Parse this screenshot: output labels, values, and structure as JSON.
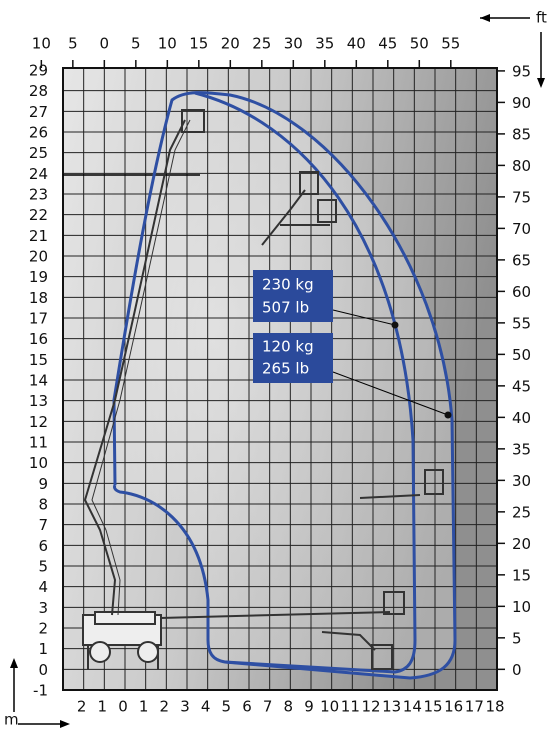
{
  "axes": {
    "top_ft": [
      10,
      5,
      0,
      5,
      10,
      15,
      20,
      25,
      30,
      35,
      40,
      45,
      50,
      55
    ],
    "right_ft": [
      95,
      90,
      85,
      80,
      75,
      70,
      65,
      60,
      55,
      50,
      45,
      40,
      35,
      30,
      25,
      20,
      15,
      10,
      5,
      0
    ],
    "left_m": [
      29,
      28,
      27,
      26,
      25,
      24,
      23,
      22,
      21,
      20,
      19,
      18,
      17,
      16,
      15,
      14,
      13,
      12,
      11,
      10,
      9,
      8,
      7,
      6,
      5,
      4,
      3,
      2,
      1,
      0,
      -1
    ],
    "bottom_m": [
      2,
      1,
      0,
      1,
      2,
      3,
      4,
      5,
      6,
      7,
      8,
      9,
      10,
      11,
      12,
      13,
      14,
      15,
      16,
      17,
      18
    ]
  },
  "units": {
    "ft": "ft",
    "m": "m"
  },
  "loads": [
    {
      "kg": "230 kg",
      "lb": "507 lb"
    },
    {
      "kg": "120 kg",
      "lb": "265 lb"
    }
  ]
}
